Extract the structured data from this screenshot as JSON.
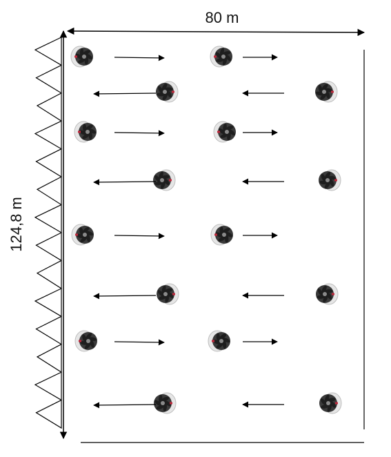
{
  "dimensions": {
    "width_label": "80 m",
    "length_label": "124,8 m"
  },
  "colors": {
    "line": "#000000",
    "fan_dark": "#3a3a3a",
    "fan_blade": "#1e1e1e",
    "fan_hub": "#8a8a8a",
    "fan_rim": "#e6e6e6",
    "fan_accent": "#c0283c"
  },
  "inlets": {
    "count": 14,
    "icon": "inlet-triangle-icon"
  },
  "fan_rows": [
    {
      "direction": "right",
      "fan_side": "left"
    },
    {
      "direction": "left",
      "fan_side": "right"
    },
    {
      "direction": "right",
      "fan_side": "left"
    },
    {
      "direction": "left",
      "fan_side": "right"
    },
    {
      "direction": "right",
      "fan_side": "left"
    },
    {
      "direction": "left",
      "fan_side": "right"
    },
    {
      "direction": "right",
      "fan_side": "left"
    },
    {
      "direction": "left",
      "fan_side": "right"
    }
  ]
}
